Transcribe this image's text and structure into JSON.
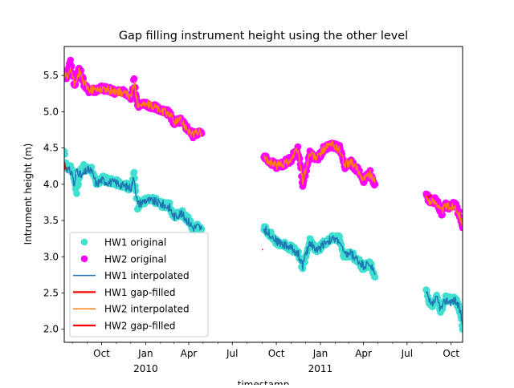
{
  "chart_data": {
    "type": "line",
    "title": "Gap filling instrument height using the other level",
    "xlabel": "timestamp",
    "ylabel": "Intrument height (m)",
    "xlim": [
      "2009-07-15",
      "2011-10-25"
    ],
    "ylim": [
      1.82,
      5.9
    ],
    "y_ticks": [
      2.0,
      2.5,
      3.0,
      3.5,
      4.0,
      4.5,
      5.0,
      5.5
    ],
    "x_ticks": [
      {
        "date": "2009-10-01",
        "label": "Oct"
      },
      {
        "date": "2010-01-01",
        "label": "Jan"
      },
      {
        "date": "2010-04-01",
        "label": "Apr"
      },
      {
        "date": "2010-07-01",
        "label": "Jul"
      },
      {
        "date": "2010-10-01",
        "label": "Oct"
      },
      {
        "date": "2011-01-01",
        "label": "Jan"
      },
      {
        "date": "2011-04-01",
        "label": "Apr"
      },
      {
        "date": "2011-07-01",
        "label": "Jul"
      },
      {
        "date": "2011-10-01",
        "label": "Oct"
      }
    ],
    "x_year_labels": [
      {
        "date": "2010-01-01",
        "label": "2010"
      },
      {
        "date": "2011-01-01",
        "label": "2011"
      }
    ],
    "grid": false,
    "legend": "lower-left",
    "series": [
      {
        "name": "HW1 original",
        "kind": "markers",
        "color": "#40e0d0",
        "segments": [
          [
            [
              "2009-07-15",
              4.42
            ],
            [
              "2009-07-20",
              4.25
            ],
            [
              "2009-08-01",
              4.2
            ],
            [
              "2009-08-10",
              3.9
            ],
            [
              "2009-08-20",
              4.25
            ],
            [
              "2009-09-01",
              4.2
            ],
            [
              "2009-09-10",
              4.22
            ],
            [
              "2009-09-20",
              3.98
            ],
            [
              "2009-10-01",
              4.08
            ],
            [
              "2009-10-15",
              4.05
            ],
            [
              "2009-11-01",
              4.02
            ],
            [
              "2009-11-15",
              4.0
            ],
            [
              "2009-12-01",
              3.95
            ],
            [
              "2009-12-08",
              4.15
            ],
            [
              "2009-12-15",
              3.7
            ],
            [
              "2010-01-01",
              3.78
            ],
            [
              "2010-01-20",
              3.78
            ],
            [
              "2010-02-05",
              3.72
            ],
            [
              "2010-02-20",
              3.7
            ],
            [
              "2010-03-01",
              3.55
            ],
            [
              "2010-03-15",
              3.62
            ],
            [
              "2010-04-01",
              3.5
            ],
            [
              "2010-04-10",
              3.38
            ],
            [
              "2010-04-20",
              3.42
            ],
            [
              "2010-04-28",
              3.38
            ]
          ],
          [
            [
              "2010-09-05",
              3.4
            ],
            [
              "2010-09-20",
              3.3
            ],
            [
              "2010-10-01",
              3.2
            ],
            [
              "2010-10-15",
              3.18
            ],
            [
              "2010-11-01",
              3.12
            ],
            [
              "2010-11-15",
              3.05
            ],
            [
              "2010-11-25",
              2.85
            ],
            [
              "2010-12-10",
              3.22
            ],
            [
              "2010-12-25",
              3.08
            ],
            [
              "2011-01-10",
              3.2
            ],
            [
              "2011-01-25",
              3.25
            ],
            [
              "2011-02-10",
              3.25
            ],
            [
              "2011-02-20",
              3.0
            ],
            [
              "2011-03-05",
              3.05
            ],
            [
              "2011-03-20",
              2.95
            ],
            [
              "2011-04-01",
              2.85
            ],
            [
              "2011-04-15",
              2.9
            ],
            [
              "2011-04-25",
              2.72
            ]
          ],
          [
            [
              "2011-08-10",
              2.55
            ],
            [
              "2011-08-20",
              2.3
            ],
            [
              "2011-09-01",
              2.45
            ],
            [
              "2011-09-10",
              2.25
            ],
            [
              "2011-09-20",
              2.42
            ],
            [
              "2011-10-01",
              2.4
            ],
            [
              "2011-10-10",
              2.42
            ],
            [
              "2011-10-20",
              2.25
            ],
            [
              "2011-10-25",
              2.0
            ]
          ]
        ]
      },
      {
        "name": "HW2 original",
        "kind": "markers",
        "color": "#ff00ff",
        "segments": [
          [
            [
              "2009-07-15",
              5.55
            ],
            [
              "2009-07-20",
              5.48
            ],
            [
              "2009-07-28",
              5.72
            ],
            [
              "2009-08-05",
              5.35
            ],
            [
              "2009-08-15",
              5.6
            ],
            [
              "2009-08-25",
              5.4
            ],
            [
              "2009-09-01",
              5.3
            ],
            [
              "2009-09-15",
              5.3
            ],
            [
              "2009-10-01",
              5.33
            ],
            [
              "2009-10-15",
              5.3
            ],
            [
              "2009-11-01",
              5.28
            ],
            [
              "2009-11-15",
              5.27
            ],
            [
              "2009-12-01",
              5.2
            ],
            [
              "2009-12-08",
              5.44
            ],
            [
              "2009-12-15",
              5.1
            ],
            [
              "2010-01-01",
              5.1
            ],
            [
              "2010-01-20",
              5.07
            ],
            [
              "2010-02-05",
              5.0
            ],
            [
              "2010-02-20",
              4.98
            ],
            [
              "2010-03-01",
              4.85
            ],
            [
              "2010-03-15",
              4.88
            ],
            [
              "2010-04-01",
              4.75
            ],
            [
              "2010-04-10",
              4.68
            ],
            [
              "2010-04-20",
              4.72
            ],
            [
              "2010-04-28",
              4.7
            ]
          ],
          [
            [
              "2010-09-05",
              4.38
            ],
            [
              "2010-09-20",
              4.3
            ],
            [
              "2010-10-01",
              4.25
            ],
            [
              "2010-10-15",
              4.28
            ],
            [
              "2010-11-01",
              4.35
            ],
            [
              "2010-11-15",
              4.5
            ],
            [
              "2010-11-25",
              4.0
            ],
            [
              "2010-12-10",
              4.42
            ],
            [
              "2010-12-25",
              4.35
            ],
            [
              "2011-01-10",
              4.5
            ],
            [
              "2011-01-25",
              4.55
            ],
            [
              "2011-02-10",
              4.5
            ],
            [
              "2011-02-20",
              4.25
            ],
            [
              "2011-03-05",
              4.3
            ],
            [
              "2011-03-20",
              4.2
            ],
            [
              "2011-04-01",
              4.05
            ],
            [
              "2011-04-15",
              4.15
            ],
            [
              "2011-04-25",
              4.0
            ]
          ],
          [
            [
              "2011-08-10",
              3.85
            ],
            [
              "2011-08-20",
              3.75
            ],
            [
              "2011-09-01",
              3.78
            ],
            [
              "2011-09-10",
              3.6
            ],
            [
              "2011-09-20",
              3.7
            ],
            [
              "2011-10-01",
              3.7
            ],
            [
              "2011-10-10",
              3.72
            ],
            [
              "2011-10-20",
              3.55
            ],
            [
              "2011-10-25",
              3.4
            ]
          ]
        ]
      },
      {
        "name": "HW1 interpolated",
        "kind": "line",
        "color": "#1f77b4",
        "segments": [
          [
            [
              "2009-07-15",
              4.3
            ],
            [
              "2009-07-22",
              4.2
            ],
            [
              "2009-08-01",
              4.15
            ],
            [
              "2009-08-05",
              3.95
            ],
            [
              "2009-08-10",
              4.22
            ],
            [
              "2009-08-20",
              4.1
            ],
            [
              "2009-09-01",
              4.2
            ],
            [
              "2009-09-10",
              4.18
            ],
            [
              "2009-09-20",
              4.0
            ],
            [
              "2009-10-01",
              4.06
            ],
            [
              "2009-10-15",
              4.03
            ],
            [
              "2009-11-01",
              4.02
            ],
            [
              "2009-11-15",
              3.98
            ],
            [
              "2009-12-01",
              3.95
            ],
            [
              "2009-12-08",
              4.1
            ],
            [
              "2009-12-15",
              3.72
            ],
            [
              "2010-01-01",
              3.78
            ],
            [
              "2010-01-20",
              3.76
            ],
            [
              "2010-02-05",
              3.72
            ],
            [
              "2010-02-20",
              3.68
            ],
            [
              "2010-03-01",
              3.55
            ],
            [
              "2010-03-15",
              3.6
            ],
            [
              "2010-04-01",
              3.48
            ],
            [
              "2010-04-10",
              3.4
            ],
            [
              "2010-04-20",
              3.42
            ],
            [
              "2010-04-28",
              3.38
            ]
          ],
          [
            [
              "2010-09-05",
              3.38
            ],
            [
              "2010-09-20",
              3.3
            ],
            [
              "2010-10-01",
              3.22
            ],
            [
              "2010-10-15",
              3.17
            ],
            [
              "2010-11-01",
              3.12
            ],
            [
              "2010-11-15",
              3.05
            ],
            [
              "2010-11-25",
              2.88
            ],
            [
              "2010-12-10",
              3.2
            ],
            [
              "2010-12-25",
              3.08
            ],
            [
              "2011-01-10",
              3.2
            ],
            [
              "2011-01-25",
              3.24
            ],
            [
              "2011-02-10",
              3.22
            ],
            [
              "2011-02-20",
              3.02
            ],
            [
              "2011-03-05",
              3.05
            ],
            [
              "2011-03-20",
              2.95
            ],
            [
              "2011-04-01",
              2.88
            ],
            [
              "2011-04-15",
              2.9
            ],
            [
              "2011-04-25",
              2.75
            ]
          ],
          [
            [
              "2011-08-10",
              2.5
            ],
            [
              "2011-08-20",
              2.32
            ],
            [
              "2011-09-01",
              2.42
            ],
            [
              "2011-09-10",
              2.28
            ],
            [
              "2011-09-20",
              2.4
            ],
            [
              "2011-10-01",
              2.38
            ],
            [
              "2011-10-10",
              2.4
            ],
            [
              "2011-10-20",
              2.25
            ],
            [
              "2011-10-25",
              2.05
            ]
          ]
        ]
      },
      {
        "name": "HW1 gap-filled",
        "kind": "line",
        "color": "#ff0000",
        "segments": [
          [
            [
              "2009-07-15",
              4.3
            ],
            [
              "2009-07-18",
              4.2
            ]
          ],
          [
            [
              "2010-09-01",
              3.1
            ],
            [
              "2010-09-03",
              3.1
            ]
          ]
        ]
      },
      {
        "name": "HW2 interpolated",
        "kind": "line",
        "color": "#ff7f0e",
        "segments": [
          [
            [
              "2009-07-15",
              5.5
            ],
            [
              "2009-07-22",
              5.45
            ],
            [
              "2009-07-28",
              5.6
            ],
            [
              "2009-08-05",
              5.38
            ],
            [
              "2009-08-15",
              5.55
            ],
            [
              "2009-08-25",
              5.4
            ],
            [
              "2009-09-01",
              5.32
            ],
            [
              "2009-09-15",
              5.3
            ],
            [
              "2009-10-01",
              5.32
            ],
            [
              "2009-10-15",
              5.3
            ],
            [
              "2009-11-01",
              5.28
            ],
            [
              "2009-11-15",
              5.26
            ],
            [
              "2009-12-01",
              5.2
            ],
            [
              "2009-12-08",
              5.4
            ],
            [
              "2009-12-15",
              5.12
            ],
            [
              "2010-01-01",
              5.1
            ],
            [
              "2010-01-20",
              5.07
            ],
            [
              "2010-02-05",
              5.0
            ],
            [
              "2010-02-20",
              4.98
            ],
            [
              "2010-03-01",
              4.86
            ],
            [
              "2010-03-15",
              4.88
            ],
            [
              "2010-04-01",
              4.75
            ],
            [
              "2010-04-10",
              4.68
            ],
            [
              "2010-04-20",
              4.72
            ],
            [
              "2010-04-28",
              4.7
            ]
          ],
          [
            [
              "2010-09-05",
              4.36
            ],
            [
              "2010-09-20",
              4.3
            ],
            [
              "2010-10-01",
              4.26
            ],
            [
              "2010-10-15",
              4.28
            ],
            [
              "2010-11-01",
              4.35
            ],
            [
              "2010-11-15",
              4.48
            ],
            [
              "2010-11-25",
              4.05
            ],
            [
              "2010-12-10",
              4.42
            ],
            [
              "2010-12-25",
              4.36
            ],
            [
              "2011-01-10",
              4.5
            ],
            [
              "2011-01-25",
              4.55
            ],
            [
              "2011-02-10",
              4.48
            ],
            [
              "2011-02-20",
              4.28
            ],
            [
              "2011-03-05",
              4.3
            ],
            [
              "2011-03-20",
              4.2
            ],
            [
              "2011-04-01",
              4.08
            ],
            [
              "2011-04-15",
              4.15
            ],
            [
              "2011-04-25",
              4.02
            ]
          ],
          [
            [
              "2011-08-10",
              3.82
            ],
            [
              "2011-08-20",
              3.75
            ],
            [
              "2011-09-01",
              3.76
            ],
            [
              "2011-09-10",
              3.62
            ],
            [
              "2011-09-20",
              3.7
            ],
            [
              "2011-10-01",
              3.68
            ],
            [
              "2011-10-10",
              3.7
            ],
            [
              "2011-10-20",
              3.55
            ],
            [
              "2011-10-25",
              3.42
            ]
          ]
        ]
      },
      {
        "name": "HW2 gap-filled",
        "kind": "line",
        "color": "#ff0000",
        "segments": [
          [
            [
              "2011-08-12",
              3.82
            ],
            [
              "2011-08-22",
              3.85
            ]
          ]
        ]
      }
    ]
  }
}
